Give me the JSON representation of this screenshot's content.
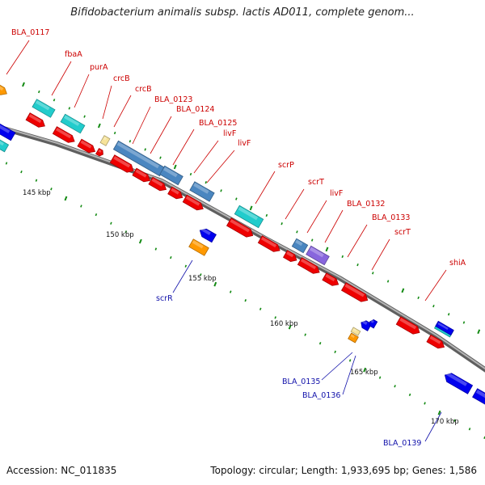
{
  "title": "Bifidobacterium animalis subsp. lactis AD011, complete genom...",
  "footer": {
    "accession": "Accession: NC_011835",
    "info": "Topology: circular; Length: 1,933,695 bp; Genes: 1,586"
  },
  "kbp_labels": [
    "145 kbp",
    "150 kbp",
    "155 kbp",
    "160 kbp",
    "165 kbp",
    "170 kbp"
  ],
  "forward_labels": [
    "BLA_0117",
    "fbaA",
    "purA",
    "crcB",
    "crcB",
    "BLA_0123",
    "BLA_0124",
    "BLA_0125",
    "livF",
    "livF",
    "scrP",
    "scrT",
    "livF",
    "BLA_0132",
    "BLA_0133",
    "scrT",
    "shiA"
  ],
  "reverse_labels": [
    "scrR",
    "BLA_0135",
    "BLA_0136",
    "BLA_0139"
  ],
  "colors": {
    "forward_cds": "#ee0000",
    "reverse_cds": "#0000ee",
    "transporter": "#4a86c0",
    "metabolism": "#22cccc",
    "regulator": "#ff9900",
    "membrane": "#8866dd",
    "misc": "#f6e39a",
    "backbone": "#808080",
    "forward_label": "#cc0000",
    "reverse_label": "#1111aa"
  }
}
